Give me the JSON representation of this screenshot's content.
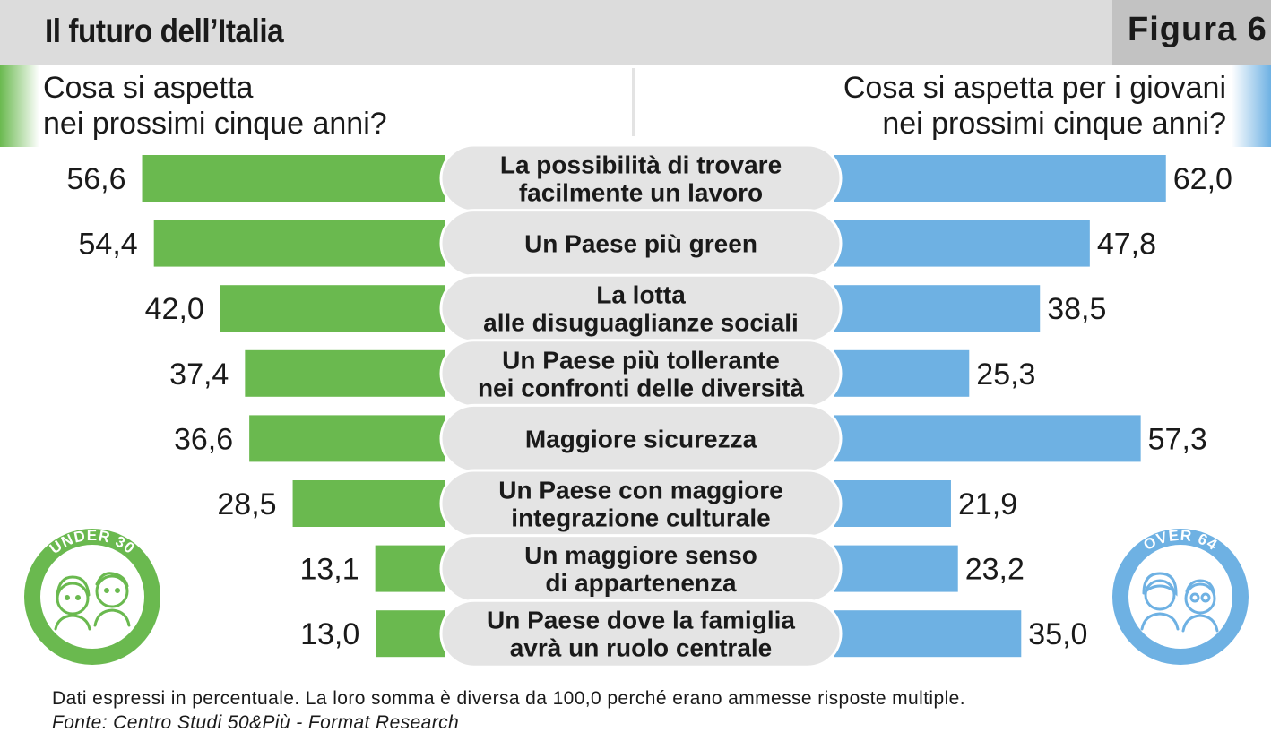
{
  "header": {
    "title": "Il futuro dell’Italia",
    "figure_label": "Figura 6"
  },
  "questions": {
    "left": "Cosa si aspetta\nnei prossimi cinque anni?",
    "right": "Cosa si aspetta per i giovani\nnei prossimi cinque anni?"
  },
  "badges": {
    "left": "UNDER 30",
    "right": "OVER 64"
  },
  "colors": {
    "green": "#6ab94f",
    "blue": "#6eb1e3",
    "pill": "#e4e4e4",
    "header": "#dcdcdc"
  },
  "chart_data": {
    "type": "bar",
    "orientation": "horizontal-butterfly",
    "categories": [
      "La possibilità di trovare\nfacilmente un lavoro",
      "Un Paese più green",
      "La lotta\nalle disuguaglianze sociali",
      "Un Paese più tollerante\nnei confronti delle diversità",
      "Maggiore sicurezza",
      "Un Paese con maggiore\nintegrazione culturale",
      "Un maggiore senso\ndi appartenenza",
      "Un Paese dove la famiglia\navrà un ruolo centrale"
    ],
    "series": [
      {
        "name": "UNDER 30",
        "side": "left",
        "color": "#6ab94f",
        "values": [
          56.6,
          54.4,
          42.0,
          37.4,
          36.6,
          28.5,
          13.1,
          13.0
        ],
        "labels": [
          "56,6",
          "54,4",
          "42,0",
          "37,4",
          "36,6",
          "28,5",
          "13,1",
          "13,0"
        ]
      },
      {
        "name": "OVER 64",
        "side": "right",
        "color": "#6eb1e3",
        "values": [
          62.0,
          47.8,
          38.5,
          25.3,
          57.3,
          21.9,
          23.2,
          35.0
        ],
        "labels": [
          "62,0",
          "47,8",
          "38,5",
          "25,3",
          "57,3",
          "21,9",
          "23,2",
          "35,0"
        ]
      }
    ]
  },
  "footer": {
    "note": "Dati espressi in percentuale. La loro somma è diversa da 100,0 perché erano ammesse risposte multiple.",
    "source": "Fonte: Centro Studi 50&Più - Format Research"
  }
}
